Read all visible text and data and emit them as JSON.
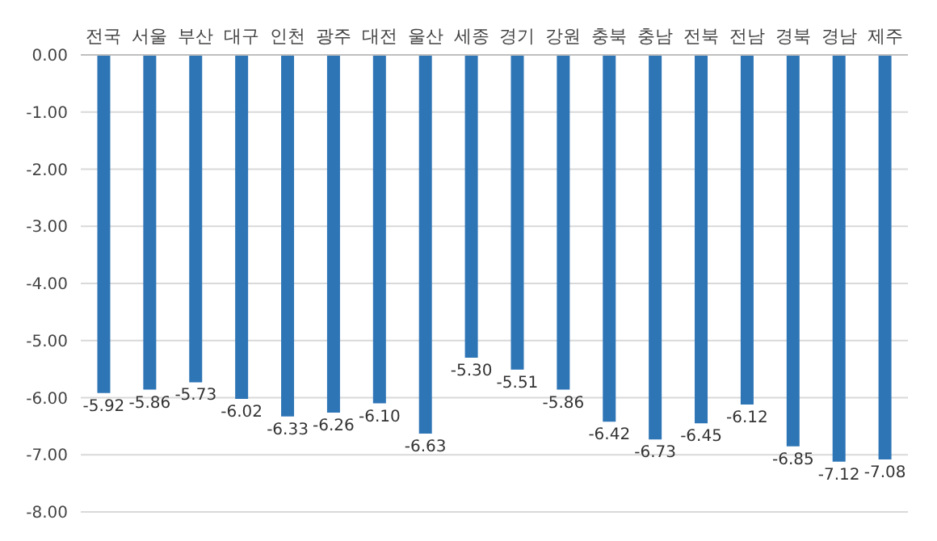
{
  "chart_data": {
    "type": "bar",
    "categories": [
      "전국",
      "서울",
      "부산",
      "대구",
      "인천",
      "광주",
      "대전",
      "울산",
      "세종",
      "경기",
      "강원",
      "충북",
      "충남",
      "전북",
      "전남",
      "경북",
      "경남",
      "제주"
    ],
    "values": [
      -5.92,
      -5.86,
      -5.73,
      -6.02,
      -6.33,
      -6.26,
      -6.1,
      -6.63,
      -5.3,
      -5.51,
      -5.86,
      -6.42,
      -6.73,
      -6.45,
      -6.12,
      -6.85,
      -7.12,
      -7.08
    ],
    "value_labels": [
      "-5.92",
      "-5.86",
      "-5.73",
      "-6.02",
      "-6.33",
      "-6.26",
      "-6.10",
      "-6.63",
      "-5.30",
      "-5.51",
      "-5.86",
      "-6.42",
      "-6.73",
      "-6.45",
      "-6.12",
      "-6.85",
      "-7.12",
      "-7.08"
    ],
    "color": "#2e75b6",
    "ylim": [
      -8,
      0
    ],
    "yticks": [
      {
        "value": 0,
        "label": "0.00"
      },
      {
        "value": -1,
        "label": "-1.00"
      },
      {
        "value": -2,
        "label": "-2.00"
      },
      {
        "value": -3,
        "label": "-3.00"
      },
      {
        "value": -4,
        "label": "-4.00"
      },
      {
        "value": -5,
        "label": "-5.00"
      },
      {
        "value": -6,
        "label": "-6.00"
      },
      {
        "value": -7,
        "label": "-7.00"
      },
      {
        "value": -8,
        "label": "-8.00"
      }
    ],
    "grid": "y",
    "legend": false
  }
}
